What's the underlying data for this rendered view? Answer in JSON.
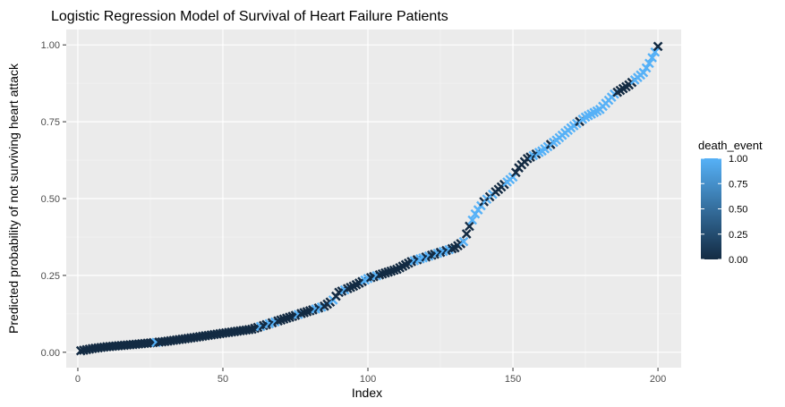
{
  "chart_data": {
    "type": "scatter",
    "title": "Logistic Regression Model of Survival of Heart Failure Patients",
    "xlabel": "Index",
    "ylabel": "Predicted probability of not surviving heart attack",
    "xlim": [
      -4,
      208
    ],
    "ylim": [
      -0.05,
      1.05
    ],
    "x_ticks": [
      0,
      50,
      100,
      150,
      200
    ],
    "x_tick_labels": [
      "0",
      "50",
      "100",
      "150",
      "200"
    ],
    "y_ticks": [
      0,
      0.25,
      0.5,
      0.75,
      1.0
    ],
    "y_tick_labels": [
      "0.00",
      "0.25",
      "0.50",
      "0.75",
      "1.00"
    ],
    "grid": true,
    "marker": "x",
    "legend": {
      "title": "death_event",
      "type": "colorbar",
      "placement": "right",
      "range": [
        0,
        1
      ],
      "ticks": [
        0,
        0.25,
        0.5,
        0.75,
        1.0
      ],
      "tick_labels": [
        "0.00",
        "0.25",
        "0.50",
        "0.75",
        "1.00"
      ],
      "low_color": "#132B43",
      "high_color": "#56B1F7"
    },
    "curve": [
      [
        1,
        0.005
      ],
      [
        5,
        0.012
      ],
      [
        10,
        0.018
      ],
      [
        20,
        0.026
      ],
      [
        30,
        0.035
      ],
      [
        40,
        0.048
      ],
      [
        50,
        0.062
      ],
      [
        60,
        0.075
      ],
      [
        65,
        0.09
      ],
      [
        70,
        0.105
      ],
      [
        75,
        0.12
      ],
      [
        80,
        0.135
      ],
      [
        85,
        0.15
      ],
      [
        88,
        0.17
      ],
      [
        90,
        0.195
      ],
      [
        95,
        0.215
      ],
      [
        100,
        0.24
      ],
      [
        105,
        0.255
      ],
      [
        110,
        0.27
      ],
      [
        115,
        0.295
      ],
      [
        120,
        0.31
      ],
      [
        125,
        0.325
      ],
      [
        130,
        0.34
      ],
      [
        133,
        0.36
      ],
      [
        135,
        0.41
      ],
      [
        137,
        0.45
      ],
      [
        140,
        0.49
      ],
      [
        145,
        0.53
      ],
      [
        150,
        0.57
      ],
      [
        152,
        0.6
      ],
      [
        155,
        0.63
      ],
      [
        160,
        0.655
      ],
      [
        165,
        0.69
      ],
      [
        170,
        0.73
      ],
      [
        175,
        0.765
      ],
      [
        180,
        0.79
      ],
      [
        185,
        0.84
      ],
      [
        190,
        0.87
      ],
      [
        195,
        0.91
      ],
      [
        197,
        0.94
      ],
      [
        200,
        0.995
      ]
    ],
    "events": [
      {
        "x": 27,
        "v": 1
      },
      {
        "x": 63,
        "v": 1
      },
      {
        "x": 66,
        "v": 1
      },
      {
        "x": 68,
        "v": 1
      },
      {
        "x": 76,
        "v": 1
      },
      {
        "x": 82,
        "v": 1
      },
      {
        "x": 84,
        "v": 1
      },
      {
        "x": 88,
        "v": 1
      },
      {
        "x": 92,
        "v": 1
      },
      {
        "x": 99,
        "v": 1
      },
      {
        "x": 100,
        "v": 1
      },
      {
        "x": 103,
        "v": 1
      },
      {
        "x": 116,
        "v": 1
      },
      {
        "x": 118,
        "v": 1
      },
      {
        "x": 119,
        "v": 1
      },
      {
        "x": 121,
        "v": 1
      },
      {
        "x": 124,
        "v": 1
      },
      {
        "x": 126,
        "v": 1
      },
      {
        "x": 128,
        "v": 1
      },
      {
        "x": 133,
        "v": 1
      },
      {
        "x": 136,
        "v": 1
      },
      {
        "x": 137,
        "v": 1
      },
      {
        "x": 138,
        "v": 1
      },
      {
        "x": 139,
        "v": 1
      },
      {
        "x": 141,
        "v": 1
      },
      {
        "x": 143,
        "v": 1
      },
      {
        "x": 148,
        "v": 1
      },
      {
        "x": 149,
        "v": 1
      },
      {
        "x": 150,
        "v": 1
      },
      {
        "x": 157,
        "v": 1
      },
      {
        "x": 159,
        "v": 1
      },
      {
        "x": 160,
        "v": 1
      },
      {
        "x": 161,
        "v": 1
      },
      {
        "x": 162,
        "v": 1
      },
      {
        "x": 164,
        "v": 1
      },
      {
        "x": 165,
        "v": 1
      },
      {
        "x": 166,
        "v": 1
      },
      {
        "x": 167,
        "v": 1
      },
      {
        "x": 168,
        "v": 1
      },
      {
        "x": 169,
        "v": 1
      },
      {
        "x": 170,
        "v": 1
      },
      {
        "x": 171,
        "v": 1
      },
      {
        "x": 172,
        "v": 1
      },
      {
        "x": 174,
        "v": 1
      },
      {
        "x": 175,
        "v": 1
      },
      {
        "x": 176,
        "v": 1
      },
      {
        "x": 177,
        "v": 1
      },
      {
        "x": 178,
        "v": 1
      },
      {
        "x": 179,
        "v": 1
      },
      {
        "x": 180,
        "v": 1
      },
      {
        "x": 181,
        "v": 1
      },
      {
        "x": 182,
        "v": 1
      },
      {
        "x": 183,
        "v": 1
      },
      {
        "x": 184,
        "v": 1
      },
      {
        "x": 185,
        "v": 1
      },
      {
        "x": 192,
        "v": 1
      },
      {
        "x": 193,
        "v": 1
      },
      {
        "x": 194,
        "v": 1
      },
      {
        "x": 195,
        "v": 1
      },
      {
        "x": 196,
        "v": 1
      },
      {
        "x": 197,
        "v": 1
      },
      {
        "x": 198,
        "v": 1
      },
      {
        "x": 199,
        "v": 1
      }
    ]
  }
}
